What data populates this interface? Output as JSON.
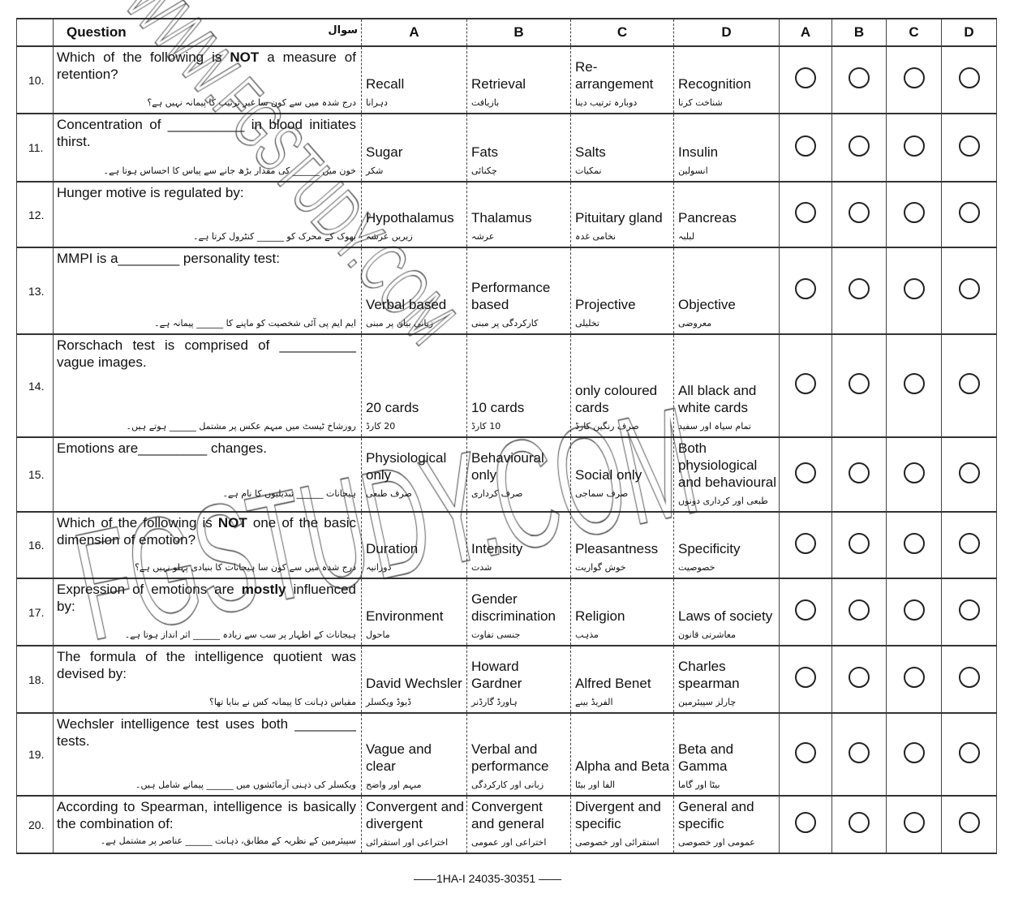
{
  "header": {
    "question_en": "Question",
    "question_ur": "سوال",
    "options": [
      "A",
      "B",
      "C",
      "D"
    ],
    "bubbles": [
      "A",
      "B",
      "C",
      "D"
    ]
  },
  "questions": [
    {
      "number": "10.",
      "en": [
        {
          "t": "Which of the following is "
        },
        {
          "t": "NOT",
          "b": true
        },
        {
          "t": " a measure of retention?"
        }
      ],
      "ur": "درج شدہ میں سے کون سا غیر ترتیب کا پیمانہ نہیں ہے؟",
      "options": [
        {
          "en": "Recall",
          "ur": "دہرانا"
        },
        {
          "en": "Retrieval",
          "ur": "بازیافت"
        },
        {
          "en": "Re-arrangement",
          "ur": "دوبارہ ترتیب دینا"
        },
        {
          "en": "Recognition",
          "ur": "شناخت کرنا"
        }
      ]
    },
    {
      "number": "11.",
      "en": [
        {
          "t": "Concentration of __________ in blood initiates thirst."
        }
      ],
      "ur": "خون میں ______ کی مقدار بڑھ جانے سے پیاس کا احساس ہوتا ہے۔",
      "options": [
        {
          "en": "Sugar",
          "ur": "شکر"
        },
        {
          "en": "Fats",
          "ur": "چکنائی"
        },
        {
          "en": "Salts",
          "ur": "نمکیات"
        },
        {
          "en": "Insulin",
          "ur": "انسولین"
        }
      ]
    },
    {
      "number": "12.",
      "en": [
        {
          "t": "Hunger motive is regulated by:"
        }
      ],
      "ur": "بھوک کے محرک کو ______ کنٹرول کرتا ہے۔",
      "options": [
        {
          "en": "Hypothalamus",
          "ur": "زیریں عرشہ"
        },
        {
          "en": "Thalamus",
          "ur": "عرشہ"
        },
        {
          "en": "Pituitary gland",
          "ur": "نخامی غدہ"
        },
        {
          "en": "Pancreas",
          "ur": "لبلبہ"
        }
      ]
    },
    {
      "number": "13.",
      "en": [
        {
          "t": "MMPI is a________ personality test:"
        }
      ],
      "ur": "ایم ایم پی آئی شخصیت کو ماپنے کا ______ پیمانہ ہے۔",
      "options": [
        {
          "en": "Verbal based",
          "ur": "زبانی بیان پر مبنی"
        },
        {
          "en": "Performance based",
          "ur": "کارکردگی پر مبنی"
        },
        {
          "en": "Projective",
          "ur": "تخلیلی"
        },
        {
          "en": "Objective",
          "ur": "معروضی"
        }
      ]
    },
    {
      "number": "14.",
      "en": [
        {
          "t": "Rorschach test is comprised of __________ vague images."
        }
      ],
      "ur": "رورشاخ ٹیسٹ میں مبہم عکس پر مشتمل ______ ہوتے ہیں۔",
      "options": [
        {
          "en": "20 cards",
          "ur": "20 کارڈ"
        },
        {
          "en": "10 cards",
          "ur": "10 کارڈ"
        },
        {
          "en": "only coloured cards",
          "ur": "صرف رنگین کارڈ"
        },
        {
          "en": "All black and white cards",
          "ur": "تمام سیاہ اور سفید"
        }
      ]
    },
    {
      "number": "15.",
      "en": [
        {
          "t": "Emotions are_________ changes."
        }
      ],
      "ur": "ہیجانات ______ تبدیلیوں کا نام ہے۔",
      "options": [
        {
          "en": "Physiological only",
          "ur": "صرف طبعی"
        },
        {
          "en": "Behavioural only",
          "ur": "صرف کرداری"
        },
        {
          "en": "Social only",
          "ur": "صرف سماجی"
        },
        {
          "en": "Both physiological and behavioural",
          "ur": "طبعی اور کرداری دونوں"
        }
      ]
    },
    {
      "number": "16.",
      "en": [
        {
          "t": "Which of the following is "
        },
        {
          "t": "NOT",
          "b": true
        },
        {
          "t": " one of the basic dimension of emotion?"
        }
      ],
      "ur": "درج شدہ میں سے کون سا ہیجانات کا بنیادی پہلو نہیں ہے؟",
      "options": [
        {
          "en": "Duration",
          "ur": "دورانیہ"
        },
        {
          "en": "Intensity",
          "ur": "شدت"
        },
        {
          "en": "Pleasantness",
          "ur": "خوش گواریت"
        },
        {
          "en": "Specificity",
          "ur": "خصوصیت"
        }
      ]
    },
    {
      "number": "17.",
      "en": [
        {
          "t": "Expression of emotions are "
        },
        {
          "t": "mostly",
          "b": true
        },
        {
          "t": " influenced by:"
        }
      ],
      "ur": "ہیجانات کے اظہار پر سب سے زیادہ ______ اثر انداز ہوتا ہے۔",
      "options": [
        {
          "en": "Environment",
          "ur": "ماحول"
        },
        {
          "en": "Gender discrimination",
          "ur": "جنسی تفاوت"
        },
        {
          "en": "Religion",
          "ur": "مذہب"
        },
        {
          "en": "Laws of society",
          "ur": "معاشرتی قانون"
        }
      ]
    },
    {
      "number": "18.",
      "en": [
        {
          "t": "The formula of the intelligence quotient was devised by:"
        }
      ],
      "ur": "مقیاس ذہانت کا پیمانہ کس نے بنایا تھا؟",
      "options": [
        {
          "en": "David Wechsler",
          "ur": "ڈیوڈ ویکسلر"
        },
        {
          "en": "Howard Gardner",
          "ur": "ہاورڈ گارڈنر"
        },
        {
          "en": "Alfred Benet",
          "ur": "الفریڈ بینے"
        },
        {
          "en": "Charles spearman",
          "ur": "چارلز سپیئرمین"
        }
      ]
    },
    {
      "number": "19.",
      "en": [
        {
          "t": "Wechsler intelligence test uses both ________ tests."
        }
      ],
      "ur": "ویکسلر کی ذہنی آزمائشوں میں ______ پیمانے شامل ہیں۔",
      "options": [
        {
          "en": "Vague and clear",
          "ur": "مبہم اور واضح"
        },
        {
          "en": "Verbal and performance",
          "ur": "زبانی اور کارکردگی"
        },
        {
          "en": "Alpha and Beta",
          "ur": "الفا اور بیٹا"
        },
        {
          "en": "Beta and Gamma",
          "ur": "بیٹا اور گاما"
        }
      ]
    },
    {
      "number": "20.",
      "en": [
        {
          "t": "According to Spearman, intelligence is basically the combination of:"
        }
      ],
      "ur": "سپیئرمین کے نظریہ کے مطابق، ذہانت ______ عناصر پر مشتمل ہے۔",
      "options": [
        {
          "en": "Convergent and divergent",
          "ur": "اختراعی اور استقرائی"
        },
        {
          "en": "Convergent and general",
          "ur": "اختراعی اور عمومی"
        },
        {
          "en": "Divergent and specific",
          "ur": "استقرائی اور خصوصی"
        },
        {
          "en": "General and specific",
          "ur": "عمومی اور خصوصی"
        }
      ]
    }
  ],
  "footer": "——1HA-I 24035-30351 ——",
  "watermarks": [
    "WWW.FGSTUDY.COM",
    "FGSTUDY.COM"
  ]
}
